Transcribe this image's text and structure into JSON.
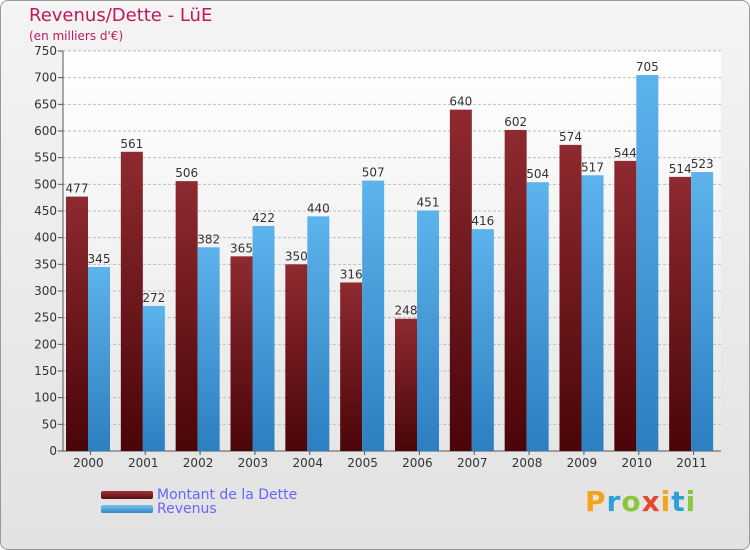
{
  "chart_data": {
    "type": "bar",
    "title": "Revenus/Dette - LüE",
    "subtitle": "(en milliers d'€)",
    "categories": [
      "2000",
      "2001",
      "2002",
      "2003",
      "2004",
      "2005",
      "2006",
      "2007",
      "2008",
      "2009",
      "2010",
      "2011"
    ],
    "series": [
      {
        "name": "Montant de la Dette",
        "color": "#7a1a1f",
        "values": [
          477,
          561,
          506,
          365,
          350,
          316,
          248,
          640,
          602,
          574,
          544,
          514
        ]
      },
      {
        "name": "Revenus",
        "color": "#4aa3e0",
        "values": [
          345,
          272,
          382,
          422,
          440,
          507,
          451,
          416,
          504,
          517,
          705,
          523
        ]
      }
    ],
    "ylim": [
      0,
      750
    ],
    "yticks": [
      0,
      50,
      100,
      150,
      200,
      250,
      300,
      350,
      400,
      450,
      500,
      550,
      600,
      650,
      700,
      750
    ],
    "grid": true,
    "legend": "bottom-left"
  },
  "logo": {
    "text": "Proxiti"
  }
}
